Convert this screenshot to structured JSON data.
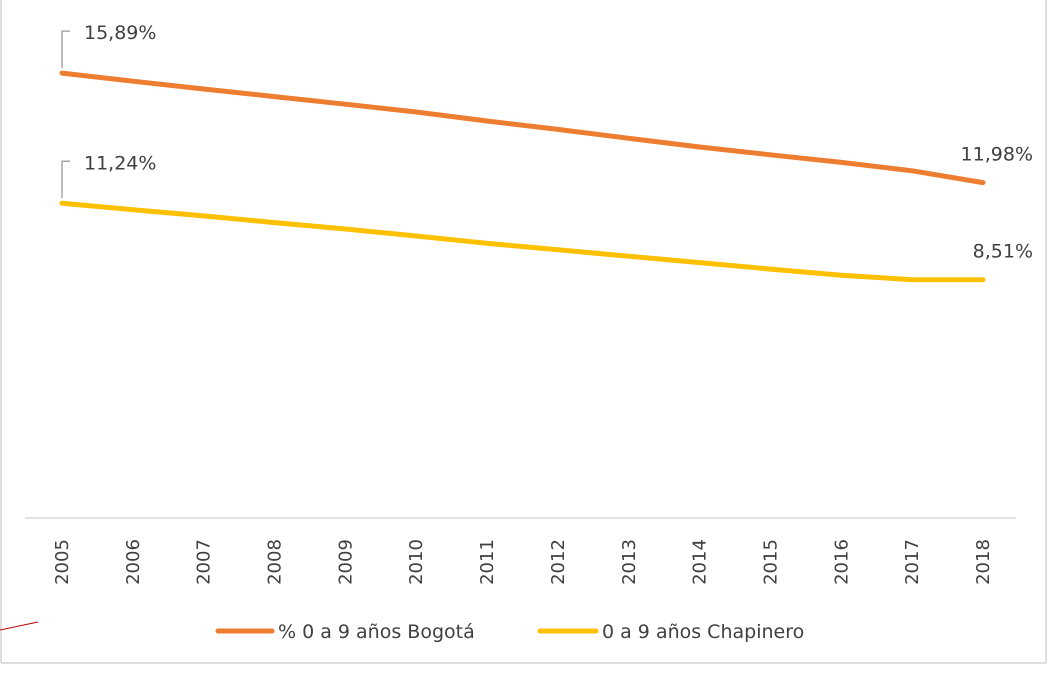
{
  "chart_data": {
    "type": "line",
    "title": "",
    "xlabel": "",
    "ylabel": "",
    "x": [
      "2005",
      "2006",
      "2007",
      "2008",
      "2009",
      "2010",
      "2011",
      "2012",
      "2013",
      "2014",
      "2015",
      "2016",
      "2017",
      "2018"
    ],
    "ylim": [
      0,
      17.5
    ],
    "grid": false,
    "legend_position": "bottom",
    "series": [
      {
        "name": "% 0 a 9 años Bogotá",
        "color": "#ED7D31",
        "values": [
          15.89,
          15.6,
          15.32,
          15.05,
          14.78,
          14.5,
          14.18,
          13.88,
          13.56,
          13.25,
          12.97,
          12.7,
          12.4,
          11.98
        ],
        "labels": [
          {
            "index": 0,
            "text": "15,89%"
          },
          {
            "index": 13,
            "text": "11,98%"
          }
        ]
      },
      {
        "name": "0 a 9 años Chapinero",
        "color": "#FFC000",
        "values": [
          11.24,
          11.01,
          10.79,
          10.55,
          10.32,
          10.07,
          9.81,
          9.58,
          9.35,
          9.12,
          8.89,
          8.67,
          8.51,
          8.51
        ],
        "labels": [
          {
            "index": 0,
            "text": "11,24%"
          },
          {
            "index": 13,
            "text": "8,51%"
          }
        ]
      }
    ]
  },
  "colors": {
    "axis": "#D9D9D9",
    "frame": "#BFBFBF",
    "text": "#404040",
    "leader": "#A6A6A6",
    "stray_mark": "#C00000"
  }
}
